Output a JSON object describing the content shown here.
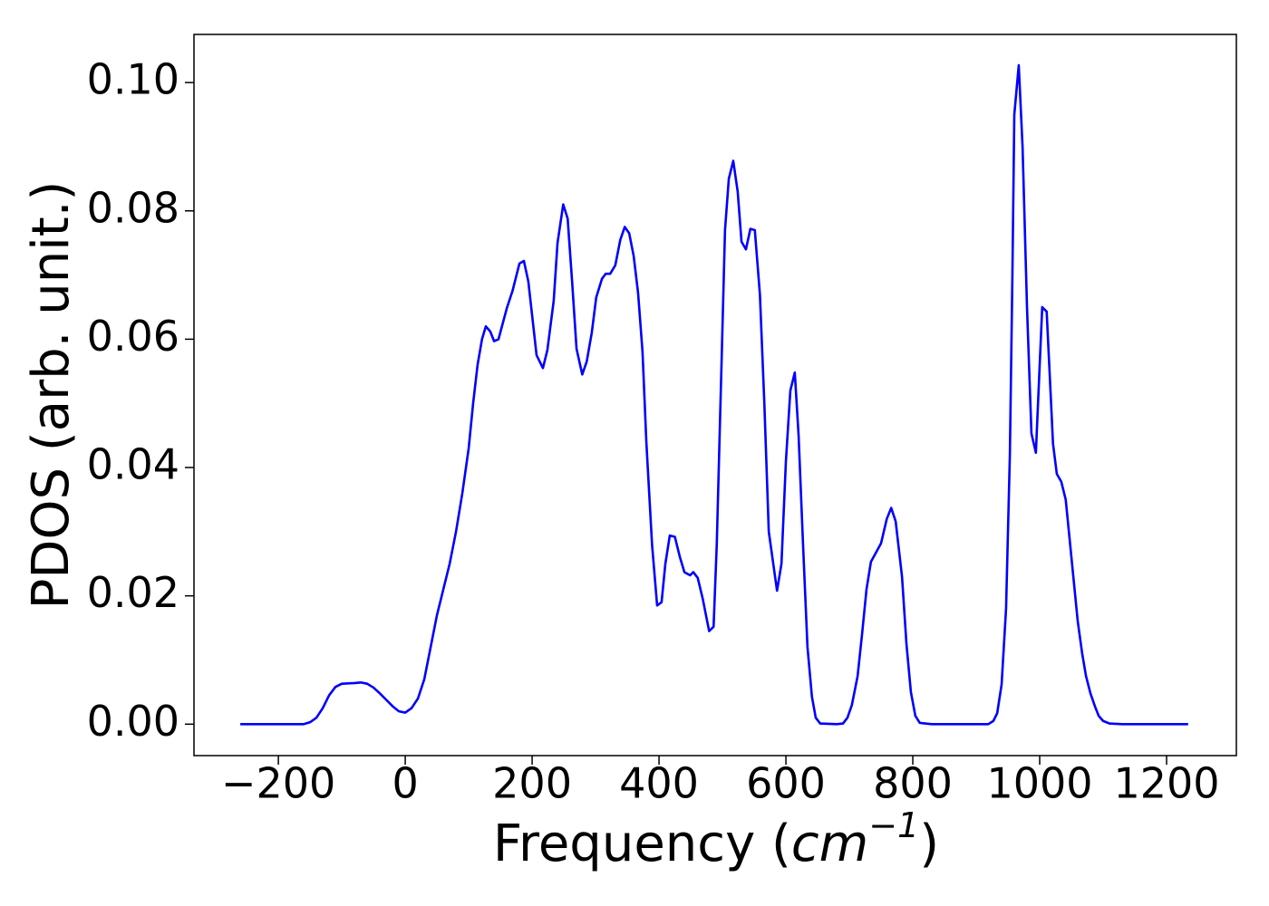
{
  "chart_data": {
    "type": "line",
    "xlabel": [
      "Frequency (",
      "cm",
      "−1",
      ")"
    ],
    "ylabel": "PDOS (arb. unit.)",
    "xlim": [
      -333,
      1310
    ],
    "ylim": [
      -0.0049,
      0.1075
    ],
    "xticks": [
      {
        "value": -200,
        "label": "−200"
      },
      0,
      200,
      400,
      600,
      800,
      1000,
      1200
    ],
    "yticks": [
      {
        "value": 0,
        "label": "0.00"
      },
      {
        "value": 0.02,
        "label": "0.02"
      },
      {
        "value": 0.04,
        "label": "0.04"
      },
      {
        "value": 0.06,
        "label": "0.06"
      },
      {
        "value": 0.08,
        "label": "0.08"
      },
      {
        "value": 0.1,
        "label": "0.10"
      }
    ],
    "series": [
      {
        "color": "#0000ff",
        "x": [
          -260,
          -160,
          -150,
          -140,
          -130,
          -120,
          -110,
          -100,
          -80,
          -70,
          -60,
          -50,
          -40,
          -30,
          -20,
          -10,
          0,
          10,
          20,
          30,
          40,
          50,
          70,
          80,
          90,
          100,
          107,
          114,
          121,
          127,
          134,
          140,
          147,
          160,
          169,
          180,
          187,
          194,
          207,
          217,
          224,
          234,
          240,
          249,
          256,
          263,
          270,
          279,
          286,
          294,
          301,
          310,
          316,
          323,
          331,
          339,
          346,
          353,
          360,
          367,
          374,
          380,
          389,
          397,
          404,
          410,
          417,
          425,
          433,
          440,
          449,
          454,
          461,
          469,
          479,
          486,
          491,
          499,
          504,
          510,
          517,
          524,
          530,
          537,
          544,
          551,
          559,
          566,
          573,
          586,
          593,
          600,
          607,
          614,
          620,
          627,
          634,
          641,
          647,
          654,
          680,
          690,
          697,
          704,
          713,
          720,
          727,
          734,
          750,
          759,
          766,
          773,
          783,
          790,
          797,
          804,
          811,
          830,
          919,
          927,
          933,
          940,
          947,
          953,
          957,
          960,
          967,
          973,
          980,
          987,
          994,
          1000,
          1004,
          1011,
          1017,
          1021,
          1027,
          1034,
          1041,
          1047,
          1054,
          1060,
          1067,
          1073,
          1080,
          1087,
          1093,
          1100,
          1110,
          1130,
          1234
        ],
        "values": [
          0,
          0,
          0.0003,
          0.001,
          0.0025,
          0.0045,
          0.0058,
          0.0063,
          0.0064,
          0.0065,
          0.0063,
          0.0057,
          0.0048,
          0.0038,
          0.0028,
          0.002,
          0.0018,
          0.0025,
          0.004,
          0.007,
          0.012,
          0.017,
          0.025,
          0.03,
          0.036,
          0.043,
          0.05,
          0.056,
          0.06,
          0.062,
          0.0612,
          0.0597,
          0.06,
          0.0648,
          0.0675,
          0.0718,
          0.0722,
          0.069,
          0.0575,
          0.0555,
          0.0583,
          0.066,
          0.075,
          0.081,
          0.0788,
          0.069,
          0.0585,
          0.0545,
          0.0565,
          0.061,
          0.0665,
          0.0694,
          0.0702,
          0.0702,
          0.0715,
          0.0755,
          0.0775,
          0.0765,
          0.073,
          0.0672,
          0.058,
          0.044,
          0.028,
          0.0185,
          0.019,
          0.025,
          0.0294,
          0.0292,
          0.026,
          0.0237,
          0.0232,
          0.0237,
          0.0228,
          0.0195,
          0.0145,
          0.0152,
          0.028,
          0.058,
          0.077,
          0.085,
          0.0878,
          0.083,
          0.0752,
          0.074,
          0.0772,
          0.077,
          0.067,
          0.05,
          0.03,
          0.0208,
          0.025,
          0.041,
          0.052,
          0.0548,
          0.045,
          0.028,
          0.012,
          0.0043,
          0.001,
          0.0001,
          0,
          0.0001,
          0.001,
          0.003,
          0.0075,
          0.014,
          0.021,
          0.0253,
          0.0282,
          0.032,
          0.0337,
          0.0316,
          0.023,
          0.0125,
          0.005,
          0.0013,
          0.0002,
          0,
          0,
          0.0005,
          0.0017,
          0.0062,
          0.018,
          0.042,
          0.07,
          0.095,
          0.1027,
          0.09,
          0.065,
          0.0453,
          0.0423,
          0.056,
          0.065,
          0.0643,
          0.052,
          0.0437,
          0.039,
          0.0378,
          0.035,
          0.029,
          0.022,
          0.016,
          0.011,
          0.0075,
          0.0048,
          0.0028,
          0.0013,
          0.0005,
          0.0001,
          0,
          0
        ]
      }
    ]
  }
}
